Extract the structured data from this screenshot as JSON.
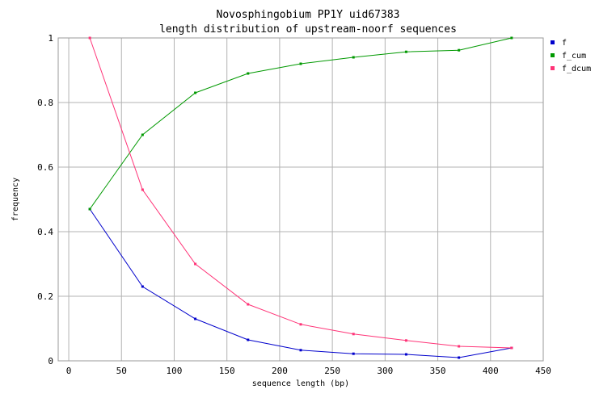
{
  "chart_data": {
    "type": "line",
    "title": "Novosphingobium PP1Y uid67383",
    "subtitle": "length distribution of upstream-noorf sequences",
    "xlabel": "sequence length (bp)",
    "ylabel": "frequency",
    "xlim": [
      -10,
      450
    ],
    "ylim": [
      0,
      1
    ],
    "xticks": [
      0,
      50,
      100,
      150,
      200,
      250,
      300,
      350,
      400,
      450
    ],
    "yticks": [
      0,
      0.2,
      0.4,
      0.6,
      0.8,
      1
    ],
    "ytick_labels": [
      "0",
      "0.2",
      "0.4",
      "0.6",
      "0.8",
      "1"
    ],
    "grid": true,
    "legend_position": "top-right",
    "x": [
      20,
      70,
      120,
      170,
      220,
      270,
      320,
      370,
      420
    ],
    "series": [
      {
        "name": "f",
        "color": "#0000cc",
        "values": [
          0.47,
          0.23,
          0.13,
          0.065,
          0.033,
          0.022,
          0.02,
          0.01,
          0.04
        ]
      },
      {
        "name": "f_cum",
        "color": "#009900",
        "values": [
          0.47,
          0.7,
          0.83,
          0.89,
          0.92,
          0.94,
          0.957,
          0.962,
          1.0
        ]
      },
      {
        "name": "f_dcum",
        "color": "#ff3377",
        "values": [
          1.0,
          0.53,
          0.3,
          0.175,
          0.113,
          0.083,
          0.063,
          0.045,
          0.04
        ]
      }
    ]
  }
}
